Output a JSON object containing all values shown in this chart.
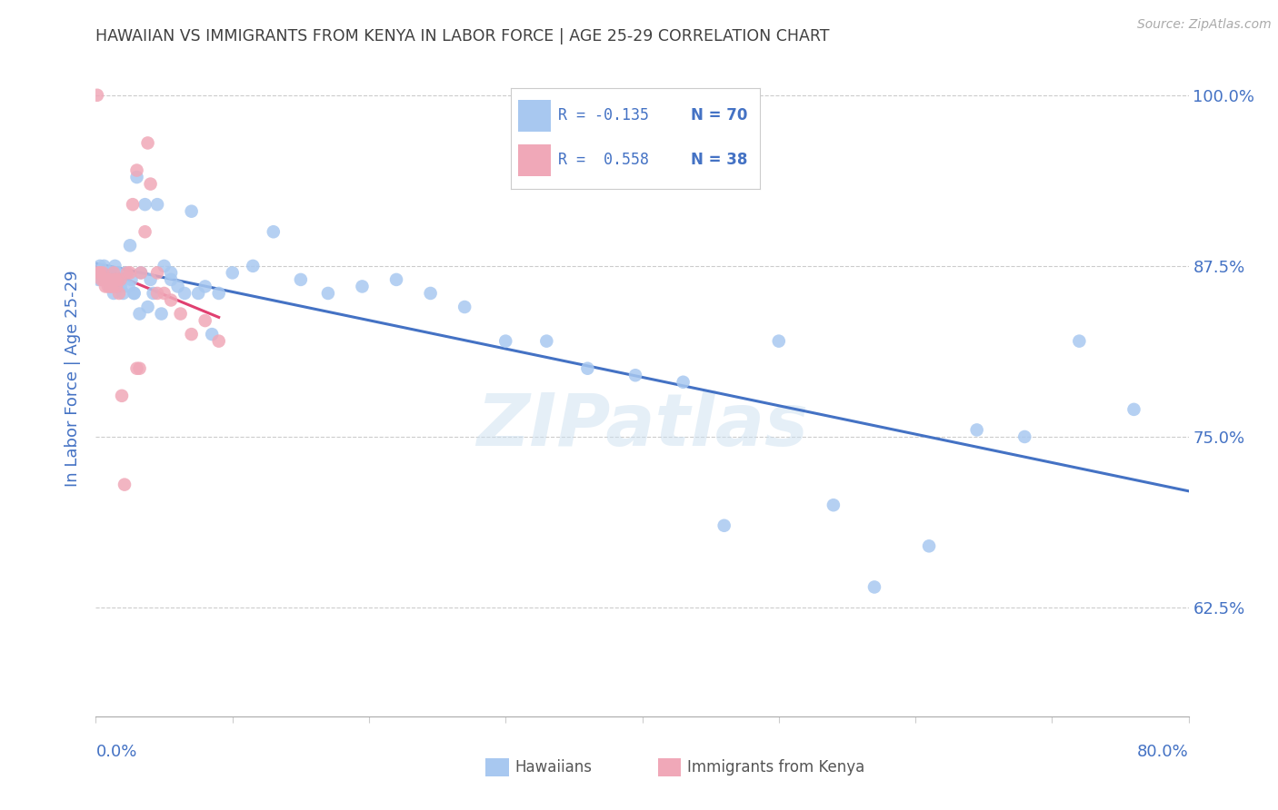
{
  "title": "HAWAIIAN VS IMMIGRANTS FROM KENYA IN LABOR FORCE | AGE 25-29 CORRELATION CHART",
  "source": "Source: ZipAtlas.com",
  "ylabel": "In Labor Force | Age 25-29",
  "xmin": 0.0,
  "xmax": 0.8,
  "ymin": 0.545,
  "ymax": 1.04,
  "blue_color": "#a8c8f0",
  "pink_color": "#f0a8b8",
  "trend_blue": "#4472c4",
  "trend_pink": "#e04070",
  "title_color": "#404040",
  "axis_color": "#4472c4",
  "watermark": "ZIPatlas",
  "blue_x": [
    0.002,
    0.003,
    0.004,
    0.005,
    0.006,
    0.007,
    0.008,
    0.009,
    0.01,
    0.011,
    0.012,
    0.013,
    0.014,
    0.015,
    0.016,
    0.017,
    0.018,
    0.02,
    0.022,
    0.024,
    0.026,
    0.028,
    0.03,
    0.033,
    0.036,
    0.04,
    0.045,
    0.05,
    0.055,
    0.06,
    0.07,
    0.08,
    0.09,
    0.1,
    0.115,
    0.13,
    0.15,
    0.17,
    0.195,
    0.22,
    0.245,
    0.27,
    0.3,
    0.33,
    0.36,
    0.395,
    0.43,
    0.46,
    0.5,
    0.54,
    0.57,
    0.61,
    0.645,
    0.68,
    0.72,
    0.76,
    0.025,
    0.028,
    0.032,
    0.038,
    0.042,
    0.048,
    0.055,
    0.065,
    0.075,
    0.085
  ],
  "blue_y": [
    0.865,
    0.875,
    0.865,
    0.87,
    0.875,
    0.865,
    0.87,
    0.865,
    0.86,
    0.87,
    0.865,
    0.855,
    0.875,
    0.87,
    0.86,
    0.865,
    0.86,
    0.855,
    0.87,
    0.86,
    0.865,
    0.855,
    0.94,
    0.87,
    0.92,
    0.865,
    0.92,
    0.875,
    0.87,
    0.86,
    0.915,
    0.86,
    0.855,
    0.87,
    0.875,
    0.9,
    0.865,
    0.855,
    0.86,
    0.865,
    0.855,
    0.845,
    0.82,
    0.82,
    0.8,
    0.795,
    0.79,
    0.685,
    0.82,
    0.7,
    0.64,
    0.67,
    0.755,
    0.75,
    0.82,
    0.77,
    0.89,
    0.855,
    0.84,
    0.845,
    0.855,
    0.84,
    0.865,
    0.855,
    0.855,
    0.825
  ],
  "pink_x": [
    0.001,
    0.002,
    0.003,
    0.004,
    0.005,
    0.006,
    0.007,
    0.008,
    0.009,
    0.01,
    0.011,
    0.012,
    0.013,
    0.014,
    0.015,
    0.016,
    0.017,
    0.018,
    0.019,
    0.021,
    0.023,
    0.025,
    0.027,
    0.03,
    0.033,
    0.036,
    0.04,
    0.045,
    0.05,
    0.055,
    0.062,
    0.07,
    0.08,
    0.09,
    0.03,
    0.032,
    0.038,
    0.045
  ],
  "pink_y": [
    1.0,
    0.87,
    0.87,
    0.865,
    0.87,
    0.865,
    0.86,
    0.865,
    0.86,
    0.865,
    0.86,
    0.86,
    0.87,
    0.865,
    0.86,
    0.865,
    0.855,
    0.865,
    0.78,
    0.715,
    0.87,
    0.87,
    0.92,
    0.945,
    0.87,
    0.9,
    0.935,
    0.87,
    0.855,
    0.85,
    0.84,
    0.825,
    0.835,
    0.82,
    0.8,
    0.8,
    0.965,
    0.855
  ],
  "ytick_vals": [
    0.625,
    0.75,
    0.875,
    1.0
  ],
  "ytick_labels": [
    "62.5%",
    "75.0%",
    "87.5%",
    "100.0%"
  ],
  "grid_color": "#cccccc",
  "spine_color": "#aaaaaa"
}
